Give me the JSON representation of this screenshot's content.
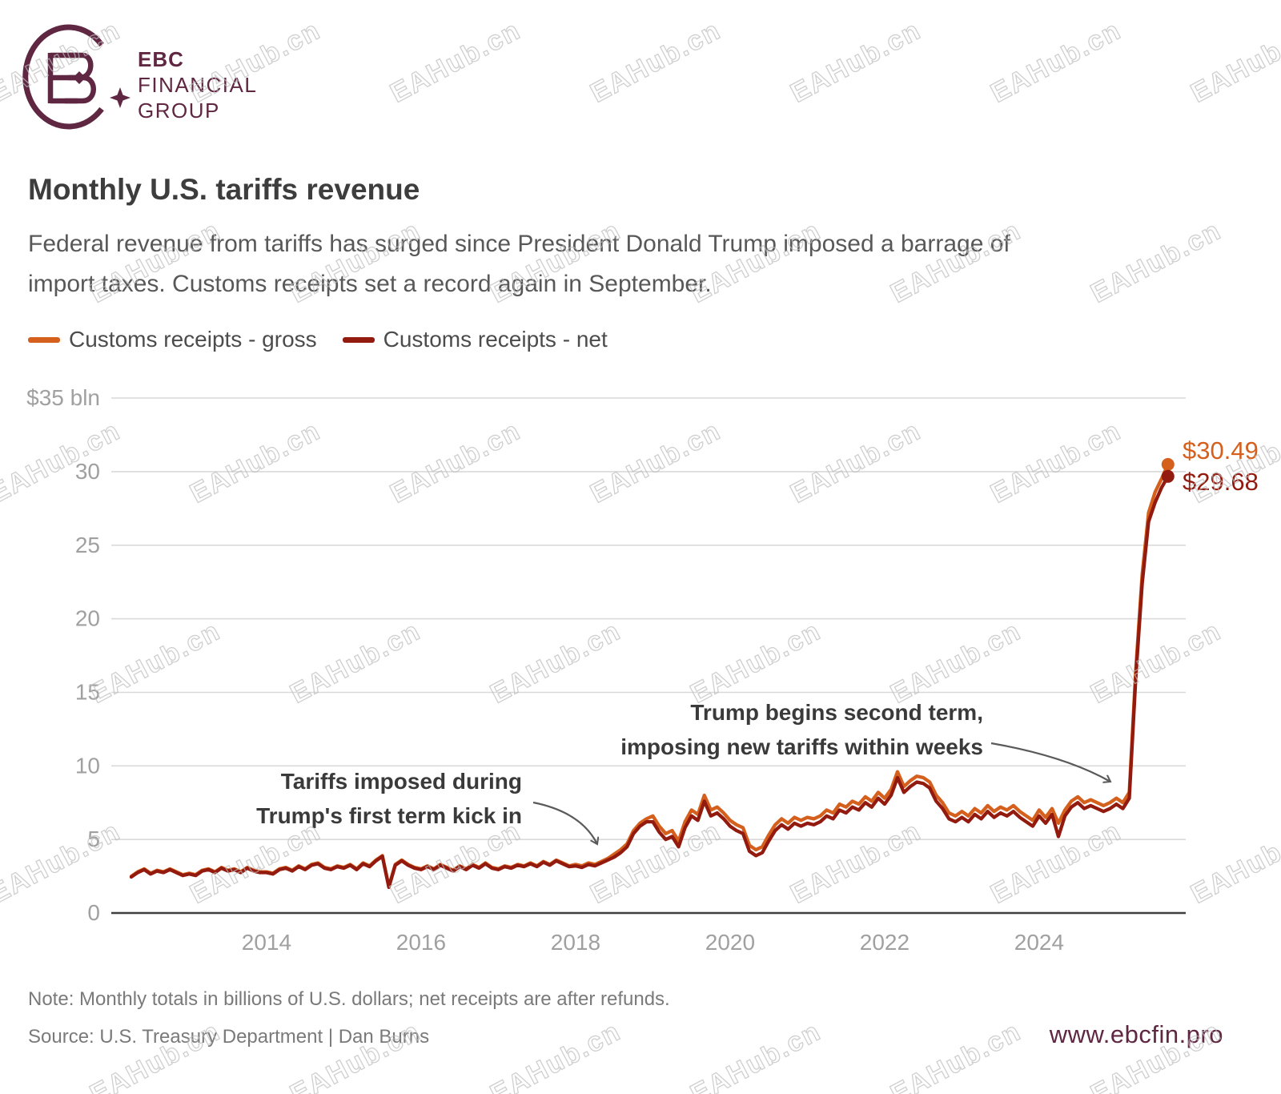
{
  "brand": {
    "logo_lines": [
      "EBC",
      "FINANCIAL",
      "GROUP"
    ],
    "color": "#5f2742",
    "website": "www.ebcfin.pro"
  },
  "watermark": {
    "text": "EAHub.cn"
  },
  "header": {
    "title": "Monthly U.S. tariffs revenue",
    "subtitle_line1": "Federal revenue from tariffs has surged since President Donald Trump imposed a barrage of",
    "subtitle_line2": "import taxes. Customs receipts set a record again in September."
  },
  "legend": {
    "items": [
      {
        "label": "Customs receipts - gross",
        "color": "#d5601d"
      },
      {
        "label": "Customs receipts - net",
        "color": "#931a0e"
      }
    ]
  },
  "chart_data": {
    "type": "line",
    "title": "Monthly U.S. tariffs revenue",
    "unit": "billions of U.S. dollars, monthly",
    "start_month": "2012-04",
    "end_month": "2025-09",
    "ylim": [
      0,
      35
    ],
    "grid": "horizontal",
    "legend_position": "top-left",
    "y_ticks": [
      {
        "value": 35,
        "label": "$35 bln"
      },
      {
        "value": 30,
        "label": "30"
      },
      {
        "value": 25,
        "label": "25"
      },
      {
        "value": 20,
        "label": "20"
      },
      {
        "value": 15,
        "label": "15"
      },
      {
        "value": 10,
        "label": "10"
      },
      {
        "value": 5,
        "label": "5"
      },
      {
        "value": 0,
        "label": "0"
      }
    ],
    "x_ticks": [
      {
        "year": 2014,
        "label": "2014"
      },
      {
        "year": 2016,
        "label": "2016"
      },
      {
        "year": 2018,
        "label": "2018"
      },
      {
        "year": 2020,
        "label": "2020"
      },
      {
        "year": 2022,
        "label": "2022"
      },
      {
        "year": 2024,
        "label": "2024"
      }
    ],
    "series": [
      {
        "name": "Customs receipts - gross",
        "color": "#d5601d",
        "end_label": "$30.49",
        "end_value": 30.49,
        "values": [
          2.5,
          2.8,
          3.0,
          2.7,
          2.9,
          2.8,
          3.0,
          2.8,
          2.6,
          2.7,
          2.6,
          2.9,
          3.0,
          2.8,
          3.1,
          2.9,
          3.0,
          2.8,
          3.1,
          2.9,
          2.8,
          2.8,
          2.7,
          3.0,
          3.1,
          2.9,
          3.2,
          3.0,
          3.3,
          3.4,
          3.1,
          3.0,
          3.2,
          3.1,
          3.3,
          3.0,
          3.4,
          3.2,
          3.6,
          3.9,
          1.8,
          3.3,
          3.6,
          3.3,
          3.1,
          3.0,
          3.2,
          3.0,
          3.3,
          3.1,
          2.9,
          3.2,
          3.0,
          3.3,
          3.1,
          3.4,
          3.1,
          3.0,
          3.2,
          3.1,
          3.3,
          3.2,
          3.4,
          3.2,
          3.5,
          3.3,
          3.6,
          3.4,
          3.2,
          3.3,
          3.2,
          3.4,
          3.3,
          3.5,
          3.7,
          4.0,
          4.3,
          4.7,
          5.6,
          6.1,
          6.4,
          6.6,
          5.9,
          5.4,
          5.6,
          4.9,
          6.2,
          7.0,
          6.7,
          8.0,
          7.0,
          7.2,
          6.8,
          6.3,
          6.0,
          5.8,
          4.6,
          4.3,
          4.5,
          5.3,
          6.0,
          6.4,
          6.1,
          6.5,
          6.3,
          6.5,
          6.4,
          6.6,
          7.0,
          6.8,
          7.4,
          7.2,
          7.6,
          7.4,
          7.9,
          7.6,
          8.2,
          7.8,
          8.4,
          9.6,
          8.6,
          9.0,
          9.3,
          9.2,
          8.9,
          8.0,
          7.5,
          6.8,
          6.6,
          6.9,
          6.6,
          7.1,
          6.8,
          7.3,
          6.9,
          7.2,
          7.0,
          7.3,
          6.9,
          6.6,
          6.3,
          7.0,
          6.5,
          7.1,
          6.1,
          7.0,
          7.6,
          7.9,
          7.5,
          7.7,
          7.5,
          7.3,
          7.5,
          7.8,
          7.5,
          8.2,
          16.5,
          23.0,
          27.2,
          28.6,
          29.5,
          30.49
        ]
      },
      {
        "name": "Customs receipts - net",
        "color": "#931a0e",
        "end_label": "$29.68",
        "end_value": 29.68,
        "values": [
          2.45,
          2.75,
          2.95,
          2.65,
          2.85,
          2.75,
          2.95,
          2.75,
          2.55,
          2.65,
          2.55,
          2.85,
          2.95,
          2.75,
          3.05,
          2.85,
          2.95,
          2.75,
          3.05,
          2.85,
          2.75,
          2.75,
          2.65,
          2.95,
          3.05,
          2.85,
          3.15,
          2.95,
          3.25,
          3.35,
          3.05,
          2.95,
          3.15,
          3.05,
          3.25,
          2.95,
          3.35,
          3.15,
          3.55,
          3.85,
          1.75,
          3.25,
          3.55,
          3.25,
          3.05,
          2.95,
          3.15,
          2.95,
          3.25,
          3.05,
          2.85,
          3.15,
          2.95,
          3.25,
          3.05,
          3.35,
          3.05,
          2.95,
          3.15,
          3.05,
          3.25,
          3.15,
          3.35,
          3.15,
          3.45,
          3.25,
          3.55,
          3.35,
          3.15,
          3.2,
          3.1,
          3.3,
          3.2,
          3.4,
          3.6,
          3.8,
          4.1,
          4.5,
          5.4,
          5.9,
          6.2,
          6.2,
          5.5,
          5.0,
          5.2,
          4.5,
          5.8,
          6.6,
          6.3,
          7.6,
          6.6,
          6.8,
          6.4,
          5.9,
          5.6,
          5.4,
          4.2,
          3.9,
          4.1,
          4.9,
          5.6,
          6.0,
          5.7,
          6.1,
          5.9,
          6.1,
          6.0,
          6.2,
          6.6,
          6.4,
          7.0,
          6.8,
          7.2,
          7.0,
          7.5,
          7.2,
          7.8,
          7.4,
          8.0,
          9.2,
          8.2,
          8.6,
          8.9,
          8.8,
          8.5,
          7.6,
          7.1,
          6.4,
          6.2,
          6.5,
          6.2,
          6.7,
          6.4,
          6.9,
          6.5,
          6.8,
          6.6,
          6.9,
          6.5,
          6.2,
          5.9,
          6.6,
          6.1,
          6.7,
          5.2,
          6.6,
          7.2,
          7.5,
          7.1,
          7.3,
          7.1,
          6.9,
          7.1,
          7.4,
          7.1,
          7.8,
          16.0,
          22.4,
          26.6,
          27.9,
          28.9,
          29.68
        ]
      }
    ],
    "annotations": [
      {
        "line1": "Tariffs imposed during",
        "line2": "Trump's first term kick in"
      },
      {
        "line1": "Trump begins second term,",
        "line2": "imposing new tariffs within weeks"
      }
    ]
  },
  "footer": {
    "note": "Note: Monthly totals in billions of U.S. dollars; net receipts are after refunds.",
    "source": "Source: U.S. Treasury Department | Dan Burns"
  }
}
